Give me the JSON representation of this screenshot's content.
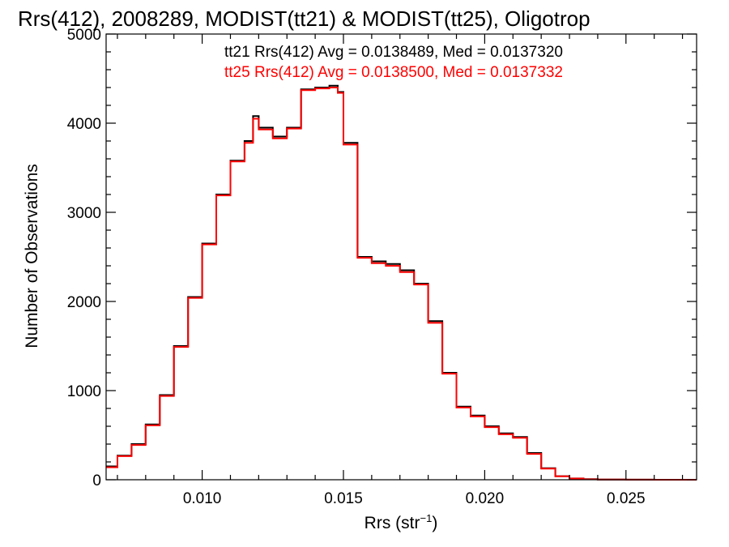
{
  "chart_data": {
    "type": "line",
    "title": "Rrs(412), 2008289, MODIST(tt21) & MODIST(tt25), Oligotrop",
    "xlabel": {
      "main": "Rrs (str",
      "sup": "−1",
      "end": ")"
    },
    "ylabel": "Number of Observations",
    "xlim": [
      0.0066,
      0.0275
    ],
    "ylim": [
      0,
      5000
    ],
    "x_ticks": [
      "0.010",
      "0.015",
      "0.020",
      "0.025"
    ],
    "y_ticks": [
      "0",
      "1000",
      "2000",
      "3000",
      "4000",
      "5000"
    ],
    "grid": false,
    "legend": [
      {
        "text": "tt21 Rrs(412) Avg = 0.0138489, Med = 0.0137320",
        "color": "#000000"
      },
      {
        "text": "tt25 Rrs(412) Avg = 0.0138500, Med = 0.0137332",
        "color": "#ff0000"
      }
    ],
    "series": [
      {
        "color": "#000000",
        "x": [
          0.0066,
          0.007,
          0.0075,
          0.008,
          0.0085,
          0.009,
          0.0095,
          0.01,
          0.0105,
          0.011,
          0.0115,
          0.0118,
          0.012,
          0.0125,
          0.013,
          0.0135,
          0.014,
          0.0145,
          0.0148,
          0.015,
          0.0155,
          0.016,
          0.0165,
          0.017,
          0.0175,
          0.018,
          0.0185,
          0.019,
          0.0195,
          0.02,
          0.0205,
          0.021,
          0.0215,
          0.022,
          0.0225,
          0.023,
          0.0235,
          0.024,
          0.025,
          0.026,
          0.0275
        ],
        "y": [
          150,
          270,
          400,
          620,
          950,
          1500,
          2050,
          2650,
          3200,
          3580,
          3800,
          4080,
          3950,
          3850,
          3950,
          4380,
          4400,
          4420,
          4350,
          3780,
          2500,
          2450,
          2420,
          2350,
          2200,
          1780,
          1200,
          820,
          720,
          600,
          520,
          480,
          300,
          130,
          40,
          15,
          6,
          3,
          1,
          0,
          0
        ]
      },
      {
        "color": "#ff0000",
        "x": [
          0.0066,
          0.007,
          0.0075,
          0.008,
          0.0085,
          0.009,
          0.0095,
          0.01,
          0.0105,
          0.011,
          0.0115,
          0.0118,
          0.012,
          0.0125,
          0.013,
          0.0135,
          0.014,
          0.0145,
          0.0148,
          0.015,
          0.0155,
          0.016,
          0.0165,
          0.017,
          0.0175,
          0.018,
          0.0185,
          0.019,
          0.0195,
          0.02,
          0.0205,
          0.021,
          0.0215,
          0.022,
          0.0225,
          0.023,
          0.0235,
          0.024,
          0.025,
          0.026,
          0.0275
        ],
        "y": [
          140,
          265,
          390,
          610,
          940,
          1490,
          2040,
          2640,
          3190,
          3570,
          3780,
          4050,
          3930,
          3830,
          3940,
          4370,
          4390,
          4400,
          4340,
          3760,
          2490,
          2430,
          2400,
          2330,
          2190,
          1760,
          1190,
          810,
          710,
          590,
          510,
          470,
          290,
          125,
          38,
          14,
          5,
          2,
          1,
          0,
          0
        ]
      }
    ]
  }
}
